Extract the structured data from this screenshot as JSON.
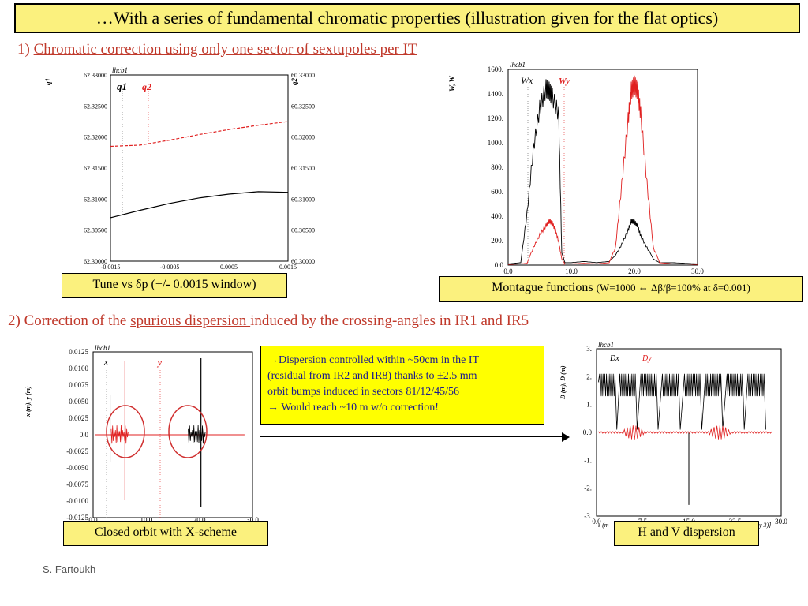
{
  "title": "…With a series of fundamental chromatic properties (illustration given for the flat optics)",
  "section1": {
    "number": "1)",
    "text": "Chromatic correction using only one sector of sextupoles per IT"
  },
  "section2": {
    "prefix": "2) Correction of the ",
    "underlined": "spurious dispersion ",
    "suffix": "induced by the crossing-angles in IR1 and IR5"
  },
  "captions": {
    "tune": "Tune vs δp (+/- 0.0015 window)",
    "montague_main": "Montague functions",
    "montague_small": "(W=1000 ⇔ Δβ/β=100% at δ=0.001)",
    "orbit": "Closed orbit with X-scheme",
    "dispersion": "H and V dispersion"
  },
  "note": {
    "lines": [
      "→Dispersion controlled within ~50cm  in the IT",
      "(residual from IR2 and IR8) thanks to ±2.5 mm",
      " orbit bumps induced in sectors 81/12/45/56",
      "→ Would reach ~10 m w/o correction!"
    ]
  },
  "footer": "S. Fartoukh",
  "colors": {
    "yellow_box": "#fbf17e",
    "note_bg": "#ffff00",
    "red": "#e02020",
    "black": "#000000",
    "heading_red": "#c0392b"
  },
  "chart_data": [
    {
      "type": "line",
      "tag": "lhcb1",
      "ylabel": "q1",
      "y2label": "q2",
      "x_ticks": [
        "-0.0015",
        "-0.0005",
        "0.0005",
        "0.0015"
      ],
      "y_ticks": [
        "62.33000",
        "62.32500",
        "62.32000",
        "62.31500",
        "62.31000",
        "62.30500",
        "62.30000"
      ],
      "y2_ticks": [
        "60.33000",
        "60.32500",
        "60.32000",
        "60.31500",
        "60.31000",
        "60.30500",
        "60.30000"
      ],
      "xlim": [
        -0.0015,
        0.0015
      ],
      "ylim": [
        62.3,
        62.33
      ],
      "y2lim": [
        60.3,
        60.33
      ],
      "series": [
        {
          "name": "q1",
          "color": "#000000",
          "style": "solid",
          "x": [
            -0.0015,
            -0.001,
            -0.0005,
            0.0,
            0.0005,
            0.001,
            0.0015
          ],
          "y": [
            62.307,
            62.3082,
            62.3093,
            62.3102,
            62.3108,
            62.3112,
            62.3111
          ]
        },
        {
          "name": "q2",
          "color": "#e02020",
          "style": "dashed",
          "axis": "y2",
          "x": [
            -0.0015,
            -0.001,
            -0.0005,
            0.0,
            0.0005,
            0.001,
            0.0015
          ],
          "y": [
            60.3185,
            60.3187,
            60.3195,
            60.3204,
            60.3212,
            60.3219,
            60.3225
          ]
        }
      ]
    },
    {
      "type": "line",
      "tag": "lhcb1",
      "ylabel": "W, W",
      "y_ticks": [
        "1600.",
        "1400.",
        "1200.",
        "1000.",
        "800.",
        "600.",
        "400.",
        "200.",
        "0.0"
      ],
      "x_ticks": [
        "0.0",
        "10.0",
        "20.0",
        "30.0"
      ],
      "xlim": [
        0,
        30
      ],
      "ylim": [
        0,
        1600
      ],
      "series": [
        {
          "name": "Wx",
          "color": "#000000",
          "x": [
            0,
            1,
            2,
            3,
            4,
            5,
            6,
            6.5,
            7,
            8,
            8.5,
            9,
            10,
            12,
            14,
            16,
            17,
            18,
            19,
            19.5,
            20,
            20.5,
            21,
            22,
            23,
            24,
            26,
            28,
            30
          ],
          "y": [
            10,
            15,
            20,
            450,
            1000,
            1350,
            1520,
            1500,
            1450,
            1300,
            100,
            20,
            20,
            30,
            20,
            30,
            80,
            180,
            300,
            380,
            370,
            340,
            250,
            150,
            50,
            20,
            20,
            15,
            10
          ]
        },
        {
          "name": "Wy",
          "color": "#e02020",
          "x": [
            0,
            2,
            3,
            4,
            5,
            6,
            6.5,
            7,
            7.5,
            8,
            8.5,
            9,
            10,
            12,
            14,
            16,
            17,
            18,
            19,
            19.5,
            20,
            20.5,
            21,
            22,
            23,
            24,
            26,
            28,
            30
          ],
          "y": [
            5,
            10,
            15,
            150,
            260,
            340,
            380,
            360,
            300,
            200,
            50,
            10,
            10,
            15,
            10,
            20,
            150,
            700,
            1250,
            1500,
            1550,
            1500,
            1300,
            700,
            150,
            20,
            10,
            10,
            5
          ]
        }
      ]
    },
    {
      "type": "line",
      "tag": "lhcb1",
      "ylabel": "x (m), y (m)",
      "y_ticks": [
        "0.0125",
        "0.0100",
        "0.0075",
        "0.0050",
        "0.0025",
        "0.0",
        "-0.0025",
        "-0.0050",
        "-0.0075",
        "-0.0100",
        "-0.0125"
      ],
      "x_ticks": [
        "0.0",
        "10.0",
        "20.0",
        "30.0"
      ],
      "xlim": [
        0,
        30
      ],
      "ylim": [
        -0.0125,
        0.0125
      ],
      "series": [
        {
          "name": "x",
          "color": "#000000"
        },
        {
          "name": "y",
          "color": "#e02020"
        }
      ]
    },
    {
      "type": "line",
      "tag": "lhcb1",
      "ylabel": "D (m), D (m)",
      "xlabel": "s (m",
      "xlabel_suffix": "y  3)]",
      "y_ticks": [
        "3.",
        "2.",
        "1.",
        "0.0",
        "-1.",
        "-2.",
        "-3."
      ],
      "x_ticks": [
        "0.0",
        "7.5",
        "15.0",
        "22.5",
        "30.0"
      ],
      "xlim": [
        0,
        30
      ],
      "ylim": [
        -3,
        3
      ],
      "series": [
        {
          "name": "Dx",
          "color": "#000000"
        },
        {
          "name": "Dy",
          "color": "#e02020"
        }
      ]
    }
  ]
}
